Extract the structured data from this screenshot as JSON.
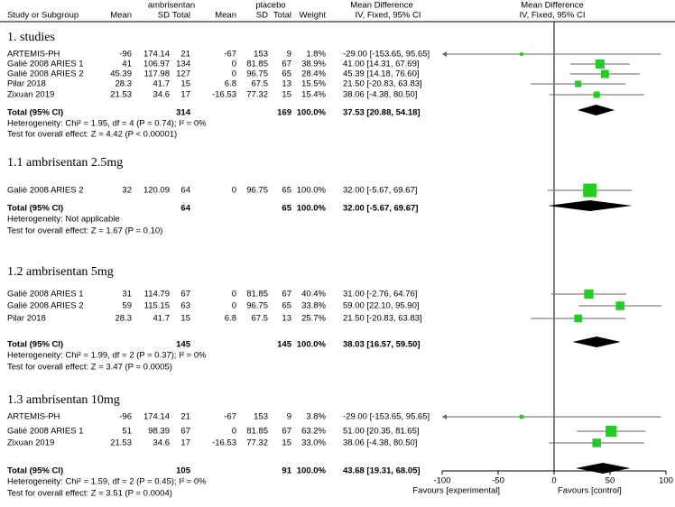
{
  "chart_data": {
    "type": "forest",
    "headers": {
      "group_e": "ambrisentan",
      "group_c": "placebo",
      "md_left": "Mean Difference",
      "md_right": "Mean Difference",
      "study": "Study or Subgroup",
      "mean_e": "Mean",
      "sd_e": "SD",
      "total_e": "Total",
      "mean_c": "Mean",
      "sd_c": "SD",
      "total_c": "Total",
      "weight": "Weight",
      "method_left": "IV, Fixed, 95% CI",
      "method_right": "IV, Fixed, 95% CI"
    },
    "xlim": [
      -100,
      100
    ],
    "xticks": [
      -100,
      -50,
      0,
      50,
      100
    ],
    "favours_left": "Favours [experimental]",
    "favours_right": "Favours [control]",
    "color": "#22cc22",
    "subgroups": [
      {
        "title": "1. studies",
        "rows": [
          {
            "study": "ARTEMIS-PH",
            "mean_e": -96,
            "sd_e": 174.14,
            "total_e": 21,
            "mean_c": -67,
            "sd_c": 153,
            "total_c": 9,
            "weight": 1.8,
            "weight_label": "1.8%",
            "md": -29.0,
            "lo": -153.65,
            "hi": 95.65,
            "ci_label": "-29.00 [-153.65, 95.65]"
          },
          {
            "study": "Galiè 2008 ARIES 1",
            "mean_e": 41,
            "sd_e": 106.97,
            "total_e": 134,
            "mean_c": 0,
            "sd_c": 81.85,
            "total_c": 67,
            "weight": 38.9,
            "weight_label": "38.9%",
            "md": 41.0,
            "lo": 14.31,
            "hi": 67.69,
            "ci_label": "41.00 [14.31, 67.69]"
          },
          {
            "study": "Galiè 2008 ARIES 2",
            "mean_e": 45.39,
            "sd_e": 117.98,
            "total_e": 127,
            "mean_c": 0,
            "sd_c": 96.75,
            "total_c": 65,
            "weight": 28.4,
            "weight_label": "28.4%",
            "md": 45.39,
            "lo": 14.18,
            "hi": 76.6,
            "ci_label": "45.39 [14.18, 76.60]"
          },
          {
            "study": "Pilar 2018",
            "mean_e": 28.3,
            "sd_e": 41.7,
            "total_e": 15,
            "mean_c": 6.8,
            "sd_c": 67.5,
            "total_c": 13,
            "weight": 15.5,
            "weight_label": "15.5%",
            "md": 21.5,
            "lo": -20.83,
            "hi": 63.83,
            "ci_label": "21.50 [-20.83, 63.83]"
          },
          {
            "study": "Zixuan 2019",
            "mean_e": 21.53,
            "sd_e": 34.6,
            "total_e": 17,
            "mean_c": -16.53,
            "sd_c": 77.32,
            "total_c": 15,
            "weight": 15.4,
            "weight_label": "15.4%",
            "md": 38.06,
            "lo": -4.38,
            "hi": 80.5,
            "ci_label": "38.06 [-4.38, 80.50]"
          }
        ],
        "total": {
          "label": "Total (95% CI)",
          "total_e": 314,
          "total_c": 169,
          "weight_label": "100.0%",
          "md": 37.53,
          "lo": 20.88,
          "hi": 54.18,
          "ci_label": "37.53 [20.88, 54.18]"
        },
        "heterogeneity": "Heterogeneity: Chi² = 1.95, df = 4 (P = 0.74); I² = 0%",
        "overall": "Test for overall effect: Z = 4.42 (P < 0.00001)"
      },
      {
        "title": "1.1 ambrisentan 2.5mg",
        "rows": [
          {
            "study": "Galiè 2008 ARIES 2",
            "mean_e": 32,
            "sd_e": 120.09,
            "total_e": 64,
            "mean_c": 0,
            "sd_c": 96.75,
            "total_c": 65,
            "weight": 100.0,
            "weight_label": "100.0%",
            "md": 32.0,
            "lo": -5.67,
            "hi": 69.67,
            "ci_label": "32.00 [-5.67, 69.67]"
          }
        ],
        "total": {
          "label": "Total (95% CI)",
          "total_e": 64,
          "total_c": 65,
          "weight_label": "100.0%",
          "md": 32.0,
          "lo": -5.67,
          "hi": 69.67,
          "ci_label": "32.00 [-5.67, 69.67]"
        },
        "heterogeneity": "Heterogeneity: Not applicable",
        "overall": "Test for overall effect: Z = 1.67 (P = 0.10)"
      },
      {
        "title": "1.2 ambrisentan 5mg",
        "rows": [
          {
            "study": "Galiè 2008 ARIES 1",
            "mean_e": 31,
            "sd_e": 114.79,
            "total_e": 67,
            "mean_c": 0,
            "sd_c": 81.85,
            "total_c": 67,
            "weight": 40.4,
            "weight_label": "40.4%",
            "md": 31.0,
            "lo": -2.76,
            "hi": 64.76,
            "ci_label": "31.00 [-2.76, 64.76]"
          },
          {
            "study": "Galiè 2008 ARIES 2",
            "mean_e": 59,
            "sd_e": 115.15,
            "total_e": 63,
            "mean_c": 0,
            "sd_c": 96.75,
            "total_c": 65,
            "weight": 33.8,
            "weight_label": "33.8%",
            "md": 59.0,
            "lo": 22.1,
            "hi": 95.9,
            "ci_label": "59.00 [22.10, 95.90]"
          },
          {
            "study": "Pilar 2018",
            "mean_e": 28.3,
            "sd_e": 41.7,
            "total_e": 15,
            "mean_c": 6.8,
            "sd_c": 67.5,
            "total_c": 13,
            "weight": 25.7,
            "weight_label": "25.7%",
            "md": 21.5,
            "lo": -20.83,
            "hi": 63.83,
            "ci_label": "21.50 [-20.83, 63.83]"
          }
        ],
        "total": {
          "label": "Total (95% CI)",
          "total_e": 145,
          "total_c": 145,
          "weight_label": "100.0%",
          "md": 38.03,
          "lo": 16.57,
          "hi": 59.5,
          "ci_label": "38.03 [16.57, 59.50]"
        },
        "heterogeneity": "Heterogeneity: Chi² = 1.99, df = 2 (P = 0.37); I² = 0%",
        "overall": "Test for overall effect: Z = 3.47 (P = 0.0005)"
      },
      {
        "title": "1.3 ambrisentan 10mg",
        "rows": [
          {
            "study": "ARTEMIS-PH",
            "mean_e": -96,
            "sd_e": 174.14,
            "total_e": 21,
            "mean_c": -67,
            "sd_c": 153,
            "total_c": 9,
            "weight": 3.8,
            "weight_label": "3.8%",
            "md": -29.0,
            "lo": -153.65,
            "hi": 95.65,
            "ci_label": "-29.00 [-153.65, 95.65]"
          },
          {
            "study": "Galiè 2008 ARIES 1",
            "mean_e": 51,
            "sd_e": 98.39,
            "total_e": 67,
            "mean_c": 0,
            "sd_c": 81.85,
            "total_c": 67,
            "weight": 63.2,
            "weight_label": "63.2%",
            "md": 51.0,
            "lo": 20.35,
            "hi": 81.65,
            "ci_label": "51.00 [20.35, 81.65]"
          },
          {
            "study": "Zixuan 2019",
            "mean_e": 21.53,
            "sd_e": 34.6,
            "total_e": 17,
            "mean_c": -16.53,
            "sd_c": 77.32,
            "total_c": 15,
            "weight": 33.0,
            "weight_label": "33.0%",
            "md": 38.06,
            "lo": -4.38,
            "hi": 80.5,
            "ci_label": "38.06 [-4.38, 80.50]"
          }
        ],
        "total": {
          "label": "Total (95% CI)",
          "total_e": 105,
          "total_c": 91,
          "weight_label": "100.0%",
          "md": 43.68,
          "lo": 19.31,
          "hi": 68.05,
          "ci_label": "43.68 [19.31, 68.05]"
        },
        "heterogeneity": "Heterogeneity: Chi² = 1.59, df = 2 (P = 0.45); I² = 0%",
        "overall": "Test for overall effect: Z = 3.51 (P = 0.0004)"
      }
    ]
  }
}
